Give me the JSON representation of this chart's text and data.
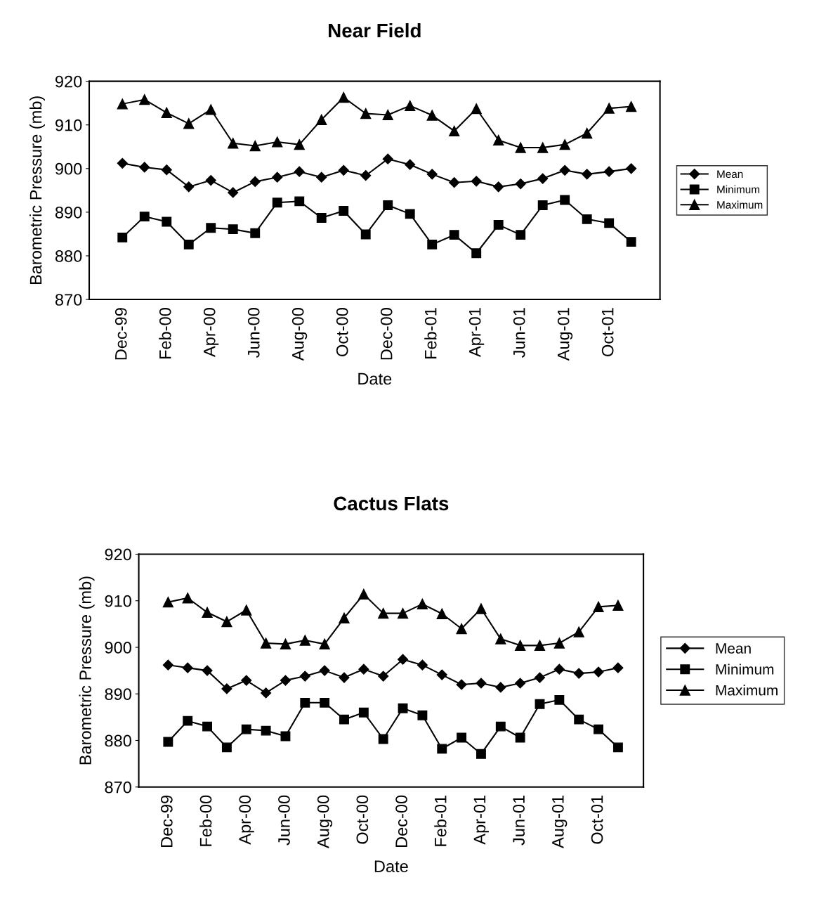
{
  "chart_data": [
    {
      "type": "line",
      "title": "Near Field",
      "xlabel": "Date",
      "ylabel": "Barometric Pressure (mb)",
      "categories": [
        "Dec-99",
        null,
        "Feb-00",
        null,
        "Apr-00",
        null,
        "Jun-00",
        null,
        "Aug-00",
        null,
        "Oct-00",
        null,
        "Dec-00",
        null,
        "Feb-01",
        null,
        "Apr-01",
        null,
        "Jun-01",
        null,
        "Aug-01",
        null,
        "Oct-01",
        null
      ],
      "ylim": [
        870,
        920
      ],
      "yticks": [
        870,
        880,
        890,
        900,
        910,
        920
      ],
      "grid": false,
      "legend": "right",
      "line_style": "solid",
      "series": [
        {
          "name": "Mean",
          "color": "#000000",
          "marker": "diamond",
          "values": [
            901.2,
            900.3,
            899.7,
            895.8,
            897.3,
            894.5,
            897.0,
            898.0,
            899.3,
            898.0,
            899.6,
            898.4,
            902.2,
            900.9,
            898.7,
            896.8,
            897.1,
            895.8,
            896.5,
            897.7,
            899.6,
            898.7,
            899.3,
            900.0
          ]
        },
        {
          "name": "Minimum",
          "color": "#000000",
          "marker": "square",
          "values": [
            884.2,
            889.0,
            887.8,
            882.6,
            886.4,
            886.1,
            885.2,
            892.2,
            892.5,
            888.7,
            890.3,
            884.9,
            891.6,
            889.6,
            882.6,
            884.8,
            880.6,
            887.1,
            884.8,
            891.6,
            892.8,
            888.4,
            887.5,
            883.2
          ]
        },
        {
          "name": "Maximum",
          "color": "#000000",
          "marker": "triangle",
          "values": [
            914.8,
            915.8,
            912.8,
            910.3,
            913.5,
            905.8,
            905.2,
            906.1,
            905.5,
            911.2,
            916.3,
            912.6,
            912.3,
            914.4,
            912.2,
            908.6,
            913.7,
            906.5,
            904.8,
            904.8,
            905.5,
            908.1,
            913.8,
            914.2
          ]
        }
      ]
    },
    {
      "type": "line",
      "title": "Cactus Flats",
      "xlabel": "Date",
      "ylabel": "Barometric Pressure (mb)",
      "categories": [
        "Dec-99",
        null,
        "Feb-00",
        null,
        "Apr-00",
        null,
        "Jun-00",
        null,
        "Aug-00",
        null,
        "Oct-00",
        null,
        "Dec-00",
        null,
        "Feb-01",
        null,
        "Apr-01",
        null,
        "Jun-01",
        null,
        "Aug-01",
        null,
        "Oct-01",
        null
      ],
      "ylim": [
        870,
        920
      ],
      "yticks": [
        870,
        880,
        890,
        900,
        910,
        920
      ],
      "grid": false,
      "legend": "right",
      "line_style": "solid",
      "series": [
        {
          "name": "Mean",
          "color": "#000000",
          "marker": "diamond",
          "values": [
            896.2,
            895.6,
            895.0,
            891.1,
            892.9,
            890.2,
            892.9,
            893.8,
            895.0,
            893.5,
            895.3,
            893.8,
            897.4,
            896.2,
            894.1,
            892.0,
            892.3,
            891.4,
            892.3,
            893.5,
            895.3,
            894.4,
            894.7,
            895.6
          ]
        },
        {
          "name": "Minimum",
          "color": "#000000",
          "marker": "square",
          "values": [
            879.7,
            884.2,
            883.0,
            878.5,
            882.4,
            882.1,
            880.9,
            888.1,
            888.1,
            884.5,
            886.0,
            880.3,
            886.9,
            885.4,
            878.2,
            880.6,
            877.1,
            883.0,
            880.6,
            887.8,
            888.7,
            884.5,
            882.4,
            878.5
          ]
        },
        {
          "name": "Maximum",
          "color": "#000000",
          "marker": "triangle",
          "values": [
            909.7,
            910.6,
            907.5,
            905.5,
            908.0,
            900.9,
            900.7,
            901.5,
            900.7,
            906.3,
            911.4,
            907.3,
            907.3,
            909.3,
            907.2,
            904.0,
            908.3,
            901.8,
            900.4,
            900.4,
            900.9,
            903.3,
            908.7,
            909.0
          ]
        }
      ]
    }
  ]
}
